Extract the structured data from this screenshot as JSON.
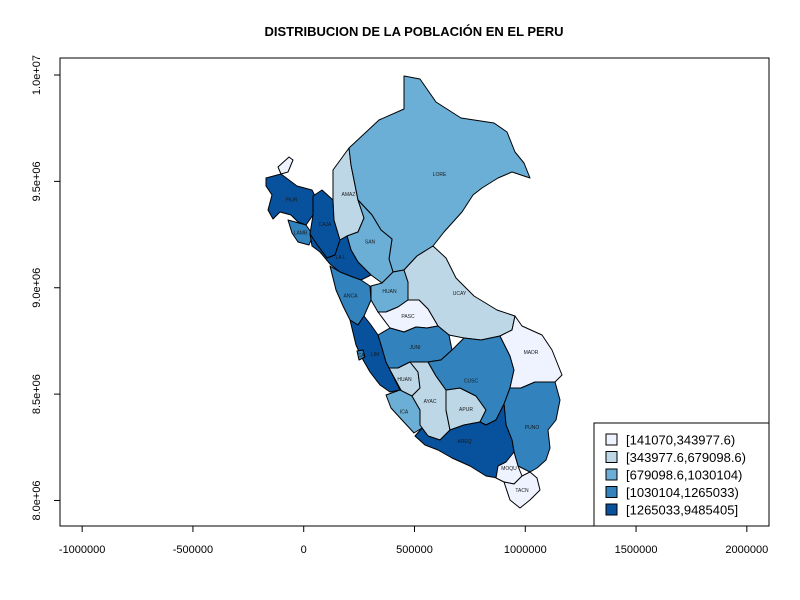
{
  "title": "DISTRIBUCION DE LA POBLACIÓN EN EL PERU",
  "chart_data": {
    "type": "choropleth",
    "title": "DISTRIBUCION DE LA POBLACIÓN EN EL PERU",
    "xlim": [
      -1100000,
      2100000
    ],
    "ylim": [
      7880000,
      10080000
    ],
    "x_ticks": [
      {
        "value": -1000000,
        "label": "-1000000"
      },
      {
        "value": -500000,
        "label": "-500000"
      },
      {
        "value": 0,
        "label": "0"
      },
      {
        "value": 500000,
        "label": "500000"
      },
      {
        "value": 1000000,
        "label": "1000000"
      },
      {
        "value": 1500000,
        "label": "1500000"
      },
      {
        "value": 2000000,
        "label": "2000000"
      }
    ],
    "y_ticks": [
      {
        "value": 8000000,
        "label": "8.0e+06"
      },
      {
        "value": 8500000,
        "label": "8.5e+06"
      },
      {
        "value": 9000000,
        "label": "9.0e+06"
      },
      {
        "value": 9500000,
        "label": "9.5e+06"
      },
      {
        "value": 10000000,
        "label": "1.0e+07"
      }
    ],
    "legend": {
      "position": "bottom-right",
      "classes": [
        {
          "label": "[141070,343977.6)",
          "color": "#eff3ff"
        },
        {
          "label": "[343977.6,679098.6)",
          "color": "#bdd7e7"
        },
        {
          "label": "[679098.6,1030104)",
          "color": "#6baed6"
        },
        {
          "label": "[1030104,1265033)",
          "color": "#3182bd"
        },
        {
          "label": "[1265033,9485405]",
          "color": "#08519c"
        }
      ]
    },
    "regions": [
      {
        "code": "TUMB",
        "cls": 0,
        "label": ""
      },
      {
        "code": "PIUR",
        "cls": 4,
        "label": "PIUR"
      },
      {
        "code": "LAMB",
        "cls": 3,
        "label": "LAMB"
      },
      {
        "code": "CAJA",
        "cls": 4,
        "label": "CAJA"
      },
      {
        "code": "AMAZ",
        "cls": 1,
        "label": "AMAZ"
      },
      {
        "code": "LORE",
        "cls": 2,
        "label": "LORE"
      },
      {
        "code": "SAN",
        "cls": 2,
        "label": "SAN"
      },
      {
        "code": "LA L",
        "cls": 4,
        "label": "LA L"
      },
      {
        "code": "ANCA",
        "cls": 3,
        "label": "ANCA"
      },
      {
        "code": "HUAN",
        "cls": 2,
        "label": "HUAN"
      },
      {
        "code": "UCAY",
        "cls": 1,
        "label": "UCAY"
      },
      {
        "code": "PASC",
        "cls": 0,
        "label": "PASC"
      },
      {
        "code": "LIM",
        "cls": 4,
        "label": "LIM"
      },
      {
        "code": "CALL",
        "cls": 3,
        "label": "CA"
      },
      {
        "code": "JUNI",
        "cls": 3,
        "label": "JUNI"
      },
      {
        "code": "HUAN2",
        "cls": 1,
        "label": "HUAN"
      },
      {
        "code": "ICA",
        "cls": 2,
        "label": "ICA"
      },
      {
        "code": "AYAC",
        "cls": 1,
        "label": "AYAC"
      },
      {
        "code": "APUR",
        "cls": 1,
        "label": "APUR"
      },
      {
        "code": "CUSC",
        "cls": 3,
        "label": "CUSC"
      },
      {
        "code": "MADR",
        "cls": 0,
        "label": "MADR"
      },
      {
        "code": "PUNO",
        "cls": 3,
        "label": "PUNO"
      },
      {
        "code": "AREQ",
        "cls": 4,
        "label": "AREQ"
      },
      {
        "code": "MOQU",
        "cls": 0,
        "label": "MOQU"
      },
      {
        "code": "TACN",
        "cls": 0,
        "label": "TACN"
      }
    ]
  }
}
